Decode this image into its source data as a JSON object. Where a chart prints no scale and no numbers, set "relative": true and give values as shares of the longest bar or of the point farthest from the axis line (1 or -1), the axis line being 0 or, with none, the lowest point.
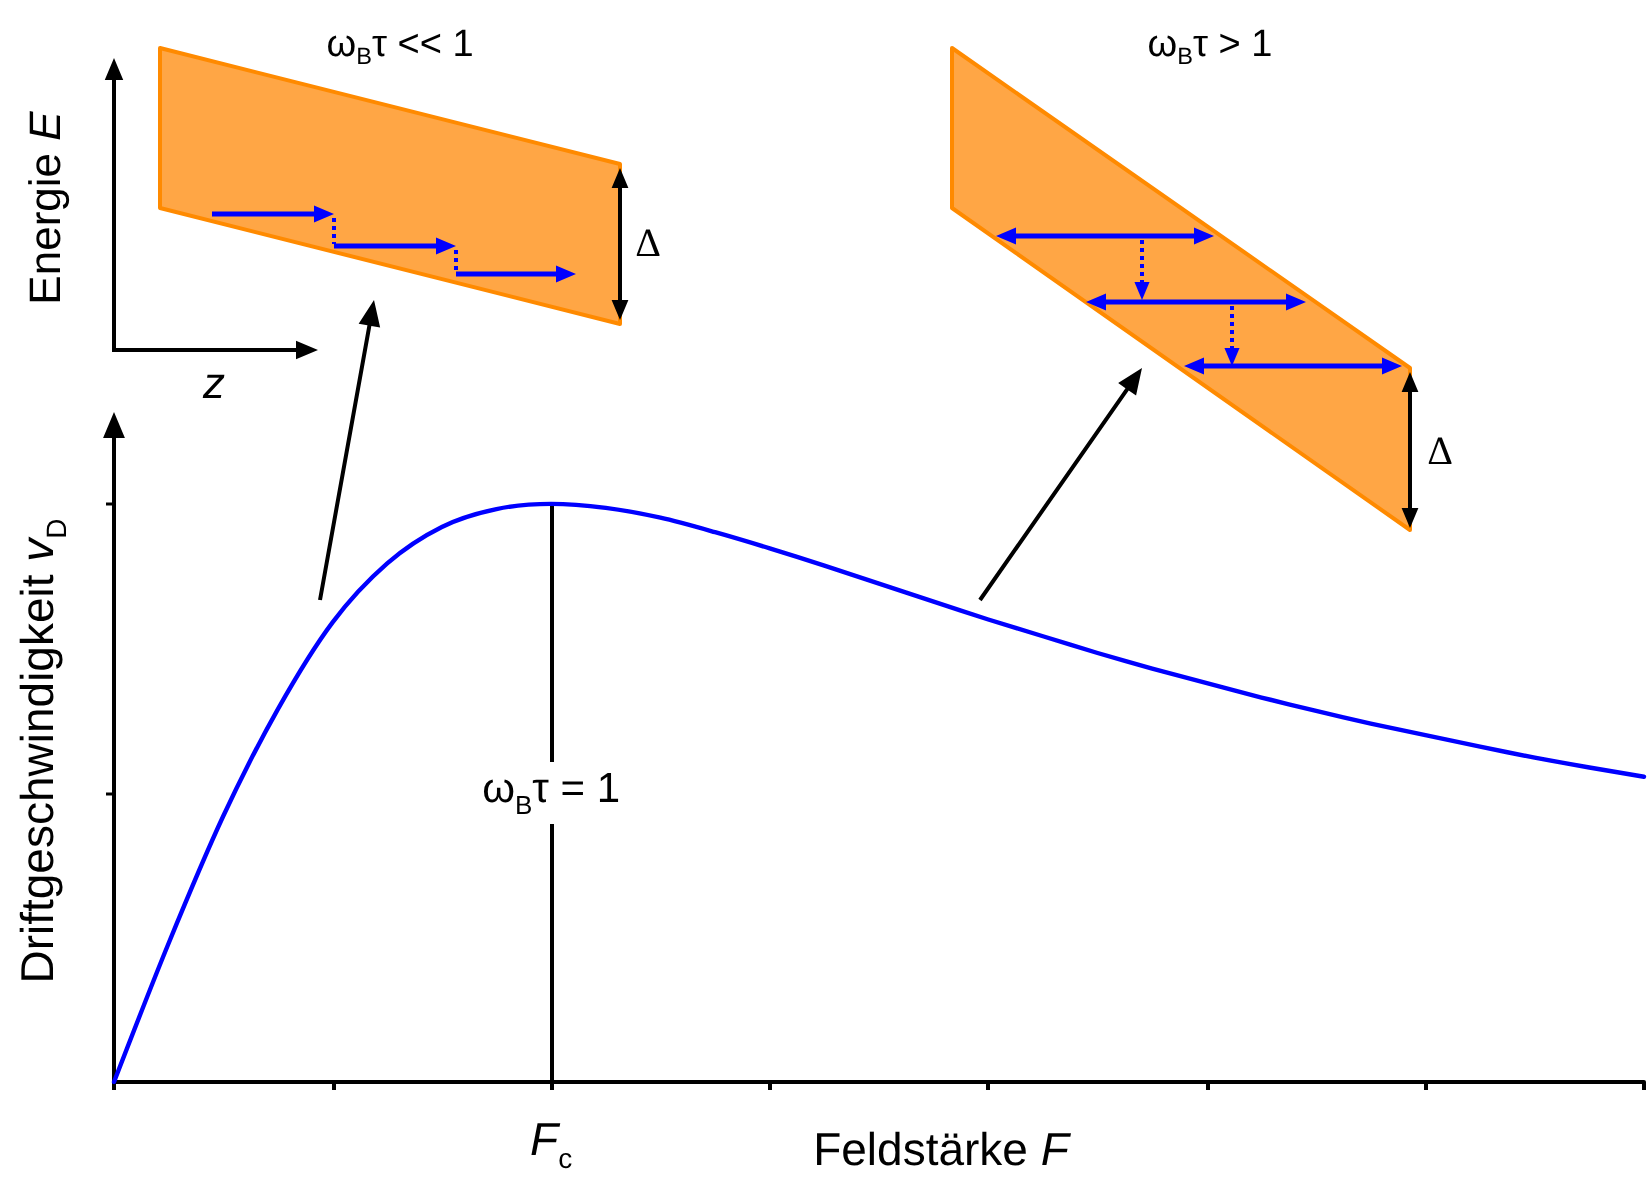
{
  "chart_data": {
    "type": "line",
    "relative": true,
    "xlabel": "Feldstärke F",
    "ylabel": "Driftgeschwindigkeit v$_{D}$",
    "categories": [
      null,
      null,
      null,
      null,
      null,
      null,
      null,
      null,
      null,
      null,
      null,
      null,
      null,
      null,
      null,
      null,
      null,
      null,
      null,
      null,
      null,
      null,
      null,
      null,
      null,
      null,
      null,
      null,
      null
    ],
    "series": [
      {
        "color": "#0000ff",
        "values": [
          0,
          0.24,
          0.46,
          0.645,
          0.795,
          0.897,
          0.96,
          0.991,
          1,
          0.993,
          0.976,
          0.951,
          0.923,
          0.893,
          0.862,
          0.831,
          0.8,
          0.771,
          0.742,
          0.715,
          0.69,
          0.665,
          0.642,
          0.62,
          0.6,
          0.58,
          0.561,
          0.544,
          0.528
        ]
      }
    ],
    "annotations": [
      "ω$_{B}$τ << 1",
      "Energie E",
      "z",
      "Δ",
      "ω$_{B}$τ > 1",
      "Δ",
      "F$_{c}$",
      "ω$_{B}$τ = 1"
    ],
    "marker": "none",
    "line_style": "solid"
  }
}
